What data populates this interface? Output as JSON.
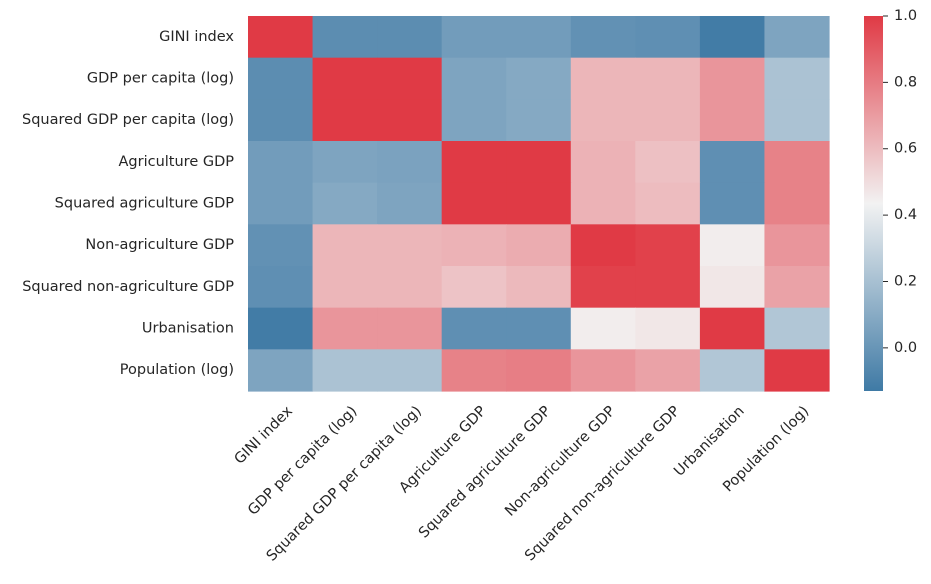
{
  "chart_data": {
    "type": "heatmap",
    "title": "",
    "xlabel": "",
    "ylabel": "",
    "rows": [
      "GINI index",
      "GDP per capita (log)",
      "Squared GDP per capita (log)",
      "Agriculture GDP",
      "Squared agriculture GDP",
      "Non-agriculture GDP",
      "Squared non-agriculture GDP",
      "Urbanisation",
      "Population (log)"
    ],
    "columns": [
      "GINI index",
      "GDP per capita (log)",
      "Squared GDP per capita (log)",
      "Agriculture GDP",
      "Squared agriculture GDP",
      "Non-agriculture GDP",
      "Squared non-agriculture GDP",
      "Urbanisation",
      "Population (log)"
    ],
    "values": [
      [
        1.0,
        -0.04,
        -0.04,
        0.03,
        0.03,
        -0.02,
        -0.03,
        -0.12,
        0.07
      ],
      [
        -0.04,
        1.0,
        1.0,
        0.07,
        0.09,
        0.62,
        0.62,
        0.72,
        0.21
      ],
      [
        -0.04,
        1.0,
        1.0,
        0.07,
        0.09,
        0.62,
        0.62,
        0.72,
        0.21
      ],
      [
        0.03,
        0.07,
        0.06,
        1.0,
        1.0,
        0.63,
        0.59,
        -0.03,
        0.78
      ],
      [
        0.03,
        0.09,
        0.07,
        1.0,
        1.0,
        0.63,
        0.6,
        -0.03,
        0.78
      ],
      [
        -0.02,
        0.62,
        0.62,
        0.63,
        0.65,
        1.0,
        0.98,
        0.45,
        0.72
      ],
      [
        -0.03,
        0.62,
        0.62,
        0.58,
        0.61,
        0.98,
        0.98,
        0.47,
        0.68
      ],
      [
        -0.12,
        0.72,
        0.72,
        -0.03,
        -0.03,
        0.45,
        0.47,
        1.0,
        0.23
      ],
      [
        0.07,
        0.21,
        0.21,
        0.78,
        0.79,
        0.72,
        0.68,
        0.23,
        1.0
      ]
    ],
    "colorbar": {
      "vmin": -0.13,
      "vmax": 1.0,
      "ticks": [
        1.0,
        0.8,
        0.6,
        0.4,
        0.2,
        0.0
      ],
      "tick_labels": [
        "1.0",
        "0.8",
        "0.6",
        "0.4",
        "0.2",
        "0.0"
      ],
      "colors": {
        "low": "#3f7aa5",
        "mid": "#f2f2f2",
        "high": "#e03a45"
      }
    },
    "legend_position": "right",
    "grid": false
  }
}
